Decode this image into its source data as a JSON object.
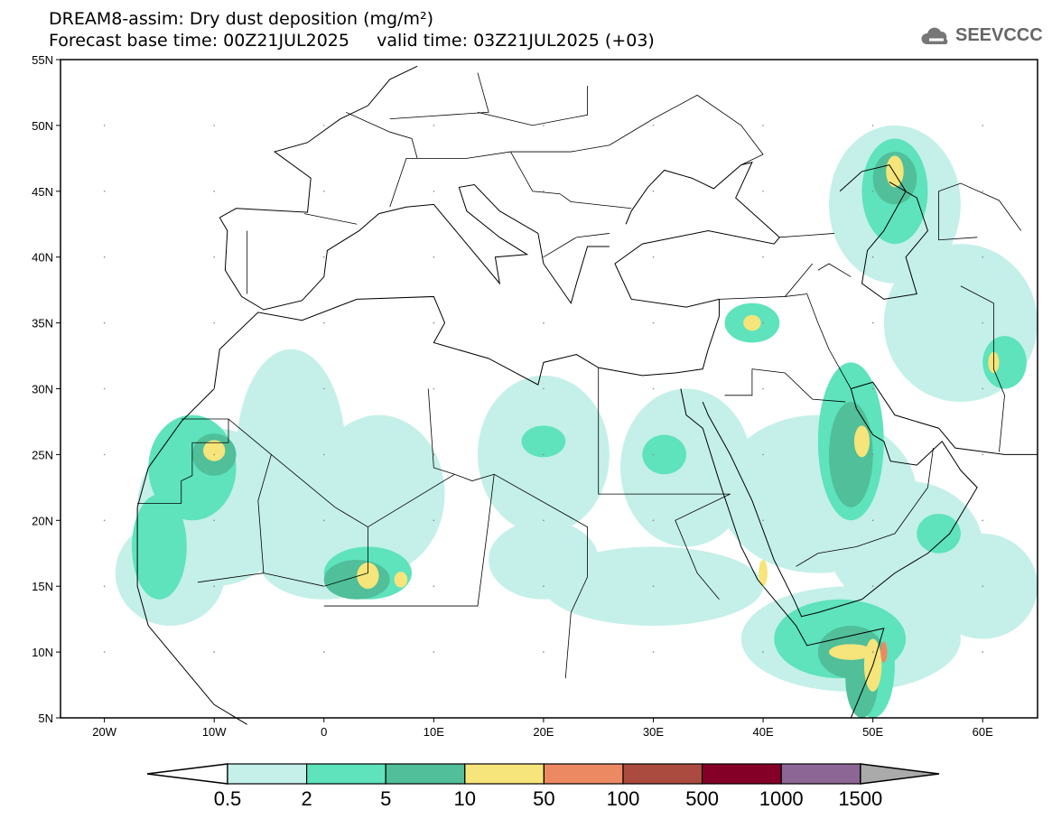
{
  "header": {
    "title": "DREAM8-assim: Dry dust deposition (mg/m²)",
    "subtitle": "Forecast base time: 00Z21JUL2025     valid time: 03Z21JUL2025 (+03)",
    "logo": "SEEVCCC"
  },
  "map": {
    "lon_range": [
      -24,
      65
    ],
    "lat_range": [
      5,
      55
    ],
    "lat_labels": [
      "5N",
      "10N",
      "15N",
      "20N",
      "25N",
      "30N",
      "35N",
      "40N",
      "45N",
      "50N",
      "55N"
    ],
    "lon_labels": [
      "20W",
      "10W",
      "0",
      "10E",
      "20E",
      "30E",
      "40E",
      "50E",
      "60E"
    ]
  },
  "colorbar": {
    "labels": [
      "0.5",
      "2",
      "5",
      "10",
      "50",
      "100",
      "500",
      "1000",
      "1500"
    ],
    "colors": [
      "#c4f0e9",
      "#5ee3bc",
      "#50bf9a",
      "#f6e57a",
      "#ec8963",
      "#ab4a3f",
      "#840027",
      "#8c6796"
    ],
    "under_color": "#ffffff",
    "over_color": "#aaaaaa"
  }
}
